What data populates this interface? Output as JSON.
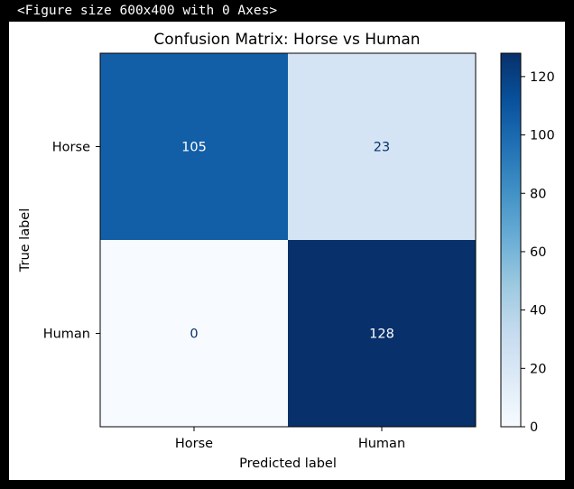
{
  "console": {
    "output_line": "<Figure size 600x400 with 0 Axes>"
  },
  "chart_data": {
    "type": "heatmap",
    "title": "Confusion Matrix: Horse vs Human",
    "xlabel": "Predicted label",
    "ylabel": "True label",
    "x_categories": [
      "Horse",
      "Human"
    ],
    "y_categories": [
      "Horse",
      "Human"
    ],
    "values": [
      [
        105,
        23
      ],
      [
        0,
        128
      ]
    ],
    "colormap": "Blues",
    "colorbar": {
      "min": 0,
      "max": 128,
      "ticks": [
        0,
        20,
        40,
        60,
        80,
        100,
        120
      ]
    },
    "colors": {
      "scale": [
        "#f7fbff",
        "#deebf7",
        "#c6dbef",
        "#9ecae1",
        "#6baed6",
        "#4292c6",
        "#2171b5",
        "#08519c",
        "#08306b"
      ],
      "text_light": "#ffffff",
      "text_dark": "#08306b"
    }
  }
}
